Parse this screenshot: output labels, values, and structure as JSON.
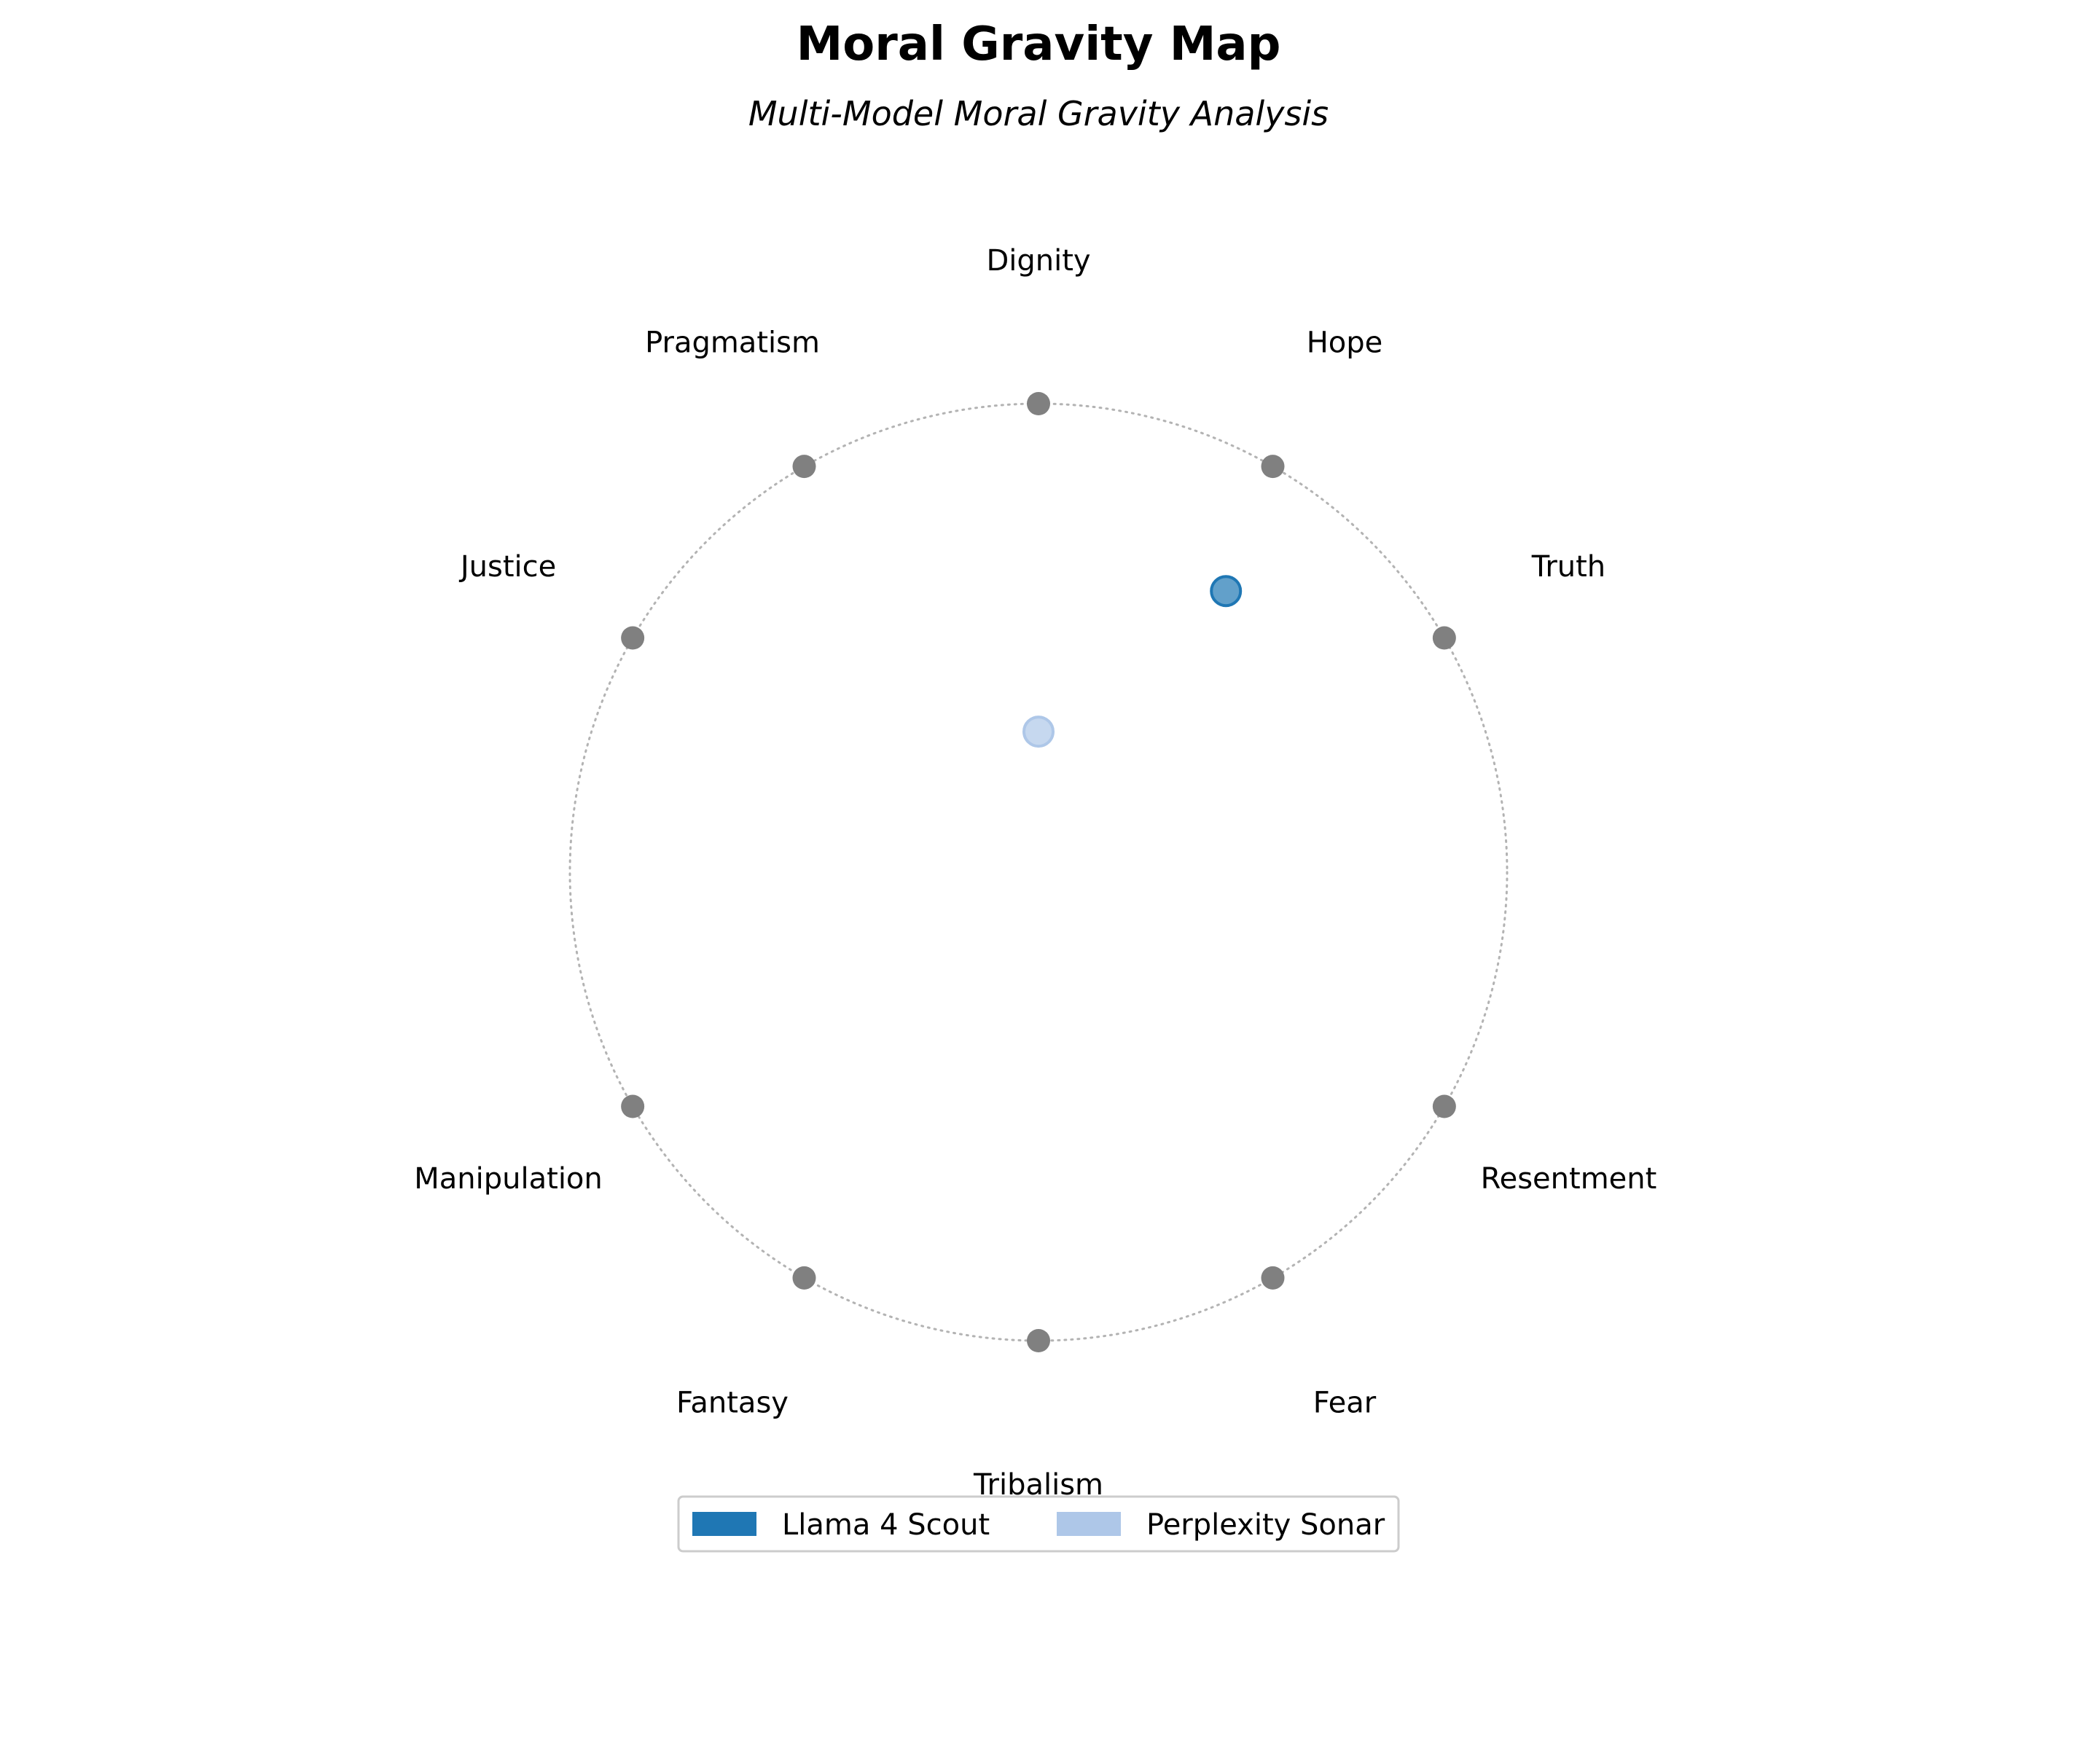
{
  "chart_data": {
    "type": "scatter",
    "title": "Moral Gravity Map",
    "subtitle": "Multi-Model Moral Gravity Analysis",
    "grid": false,
    "legend_position": "bottom-center",
    "anchors": [
      {
        "label": "Dignity",
        "angle_deg": 90,
        "color": "#808080"
      },
      {
        "label": "Hope",
        "angle_deg": 60,
        "color": "#808080"
      },
      {
        "label": "Truth",
        "angle_deg": 30,
        "color": "#808080"
      },
      {
        "label": "Resentment",
        "angle_deg": -30,
        "color": "#808080"
      },
      {
        "label": "Fear",
        "angle_deg": -60,
        "color": "#808080"
      },
      {
        "label": "Tribalism",
        "angle_deg": -90,
        "color": "#808080"
      },
      {
        "label": "Fantasy",
        "angle_deg": -120,
        "color": "#808080"
      },
      {
        "label": "Manipulation",
        "angle_deg": -150,
        "color": "#808080"
      },
      {
        "label": "Justice",
        "angle_deg": 150,
        "color": "#808080"
      },
      {
        "label": "Pragmatism",
        "angle_deg": 120,
        "color": "#808080"
      }
    ],
    "series": [
      {
        "name": "Llama 4 Scout",
        "color": "#1f77b4",
        "x": 0.4,
        "y": 0.6
      },
      {
        "name": "Perplexity Sonar",
        "color": "#aec7e8",
        "x": 0.0,
        "y": 0.3
      }
    ],
    "xlim": [
      -1,
      1
    ],
    "ylim": [
      -1,
      1
    ]
  }
}
